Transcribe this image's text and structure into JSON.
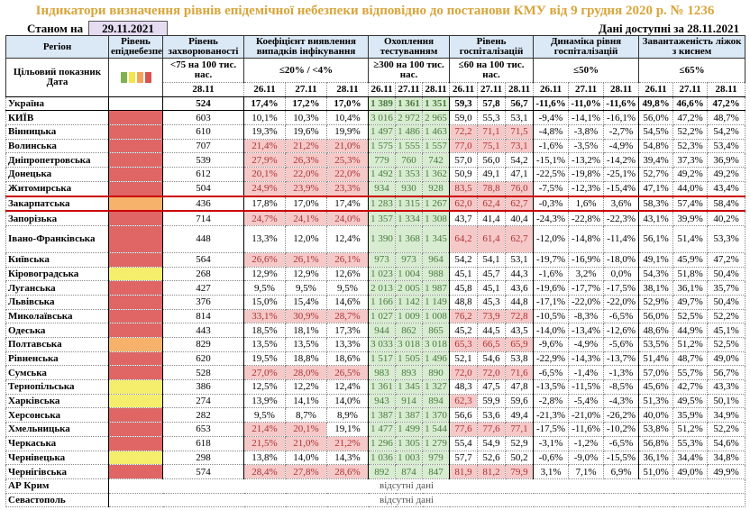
{
  "title": "Індикатори визначення рівнів епідемічної небезпеки відповідно до постанови КМУ від 9 грудня 2020 р. № 1236",
  "as_of_label": "Станом на",
  "as_of_date": "29.11.2021",
  "available_label": "Дані доступні за",
  "available_date": "28.11.2021",
  "headers": {
    "region": "Регіон",
    "level": "Рівень епіднебезпеки",
    "incidence": "Рівень захворюваності",
    "coef": "Коефіцієнт виявлення випадків інфікування",
    "testing": "Охоплення тестуванням",
    "hosp": "Рівень госпіталізацій",
    "dyn": "Динаміка рівня госпіталізацій",
    "beds": "Завантаженість ліжок з киснем"
  },
  "target_row": {
    "label": "Цільовий показник",
    "incidence": "<75 на 100 тис. нас.",
    "coef": "≤20% / <4%",
    "testing": "≥300 на 100 тис. нас.",
    "hosp": "≤60 на 100 тис. нас.",
    "dyn": "≤50%",
    "beds": "≤65%"
  },
  "legend_colors": [
    "#7fb24e",
    "#f2e64b",
    "#f3a35b",
    "#d9534f"
  ],
  "date_label": "Дата",
  "incidence_date": "28.11",
  "dates": [
    "26.11",
    "27.11",
    "28.11"
  ],
  "level_colors": {
    "red": "#e06666",
    "orange": "#f6b26b",
    "yellow": "#f5ed6c"
  },
  "rows": [
    {
      "region": "Україна",
      "level": "",
      "inc": "524",
      "coef": [
        "17,4%",
        "17,2%",
        "17,0%"
      ],
      "test": [
        "1 389",
        "1 361",
        "1 351"
      ],
      "hosp": [
        "59,3",
        "57,8",
        "56,7"
      ],
      "dyn": [
        "-11,6%",
        "-11,0%",
        "-11,6%"
      ],
      "beds": [
        "49,8%",
        "46,6%",
        "47,2%"
      ]
    },
    {
      "region": "КИЇВ",
      "level": "red",
      "inc": "603",
      "coef": [
        "10,1%",
        "10,3%",
        "10,4%"
      ],
      "test": [
        "3 016",
        "2 972",
        "2 965"
      ],
      "hosp": [
        "59,0",
        "55,3",
        "53,1"
      ],
      "dyn": [
        "-9,4%",
        "-14,1%",
        "-16,1%"
      ],
      "beds": [
        "56,0%",
        "47,2%",
        "48,7%"
      ]
    },
    {
      "region": "Вінницька",
      "level": "red",
      "inc": "610",
      "coef": [
        "19,3%",
        "19,6%",
        "19,9%"
      ],
      "test": [
        "1 497",
        "1 486",
        "1 463"
      ],
      "hosp": [
        "72,2",
        "71,1",
        "71,5"
      ],
      "dyn": [
        "-4,8%",
        "-3,8%",
        "-2,7%"
      ],
      "beds": [
        "54,5%",
        "52,2%",
        "54,2%"
      ]
    },
    {
      "region": "Волинська",
      "level": "red",
      "inc": "707",
      "coef": [
        "21,4%",
        "21,2%",
        "21,0%"
      ],
      "test": [
        "1 575",
        "1 555",
        "1 557"
      ],
      "hosp": [
        "77,0",
        "75,1",
        "73,1"
      ],
      "dyn": [
        "-1,6%",
        "-3,5%",
        "-4,9%"
      ],
      "beds": [
        "54,8%",
        "52,3%",
        "53,4%"
      ]
    },
    {
      "region": "Дніпропетровська",
      "level": "red",
      "inc": "539",
      "coef": [
        "27,9%",
        "26,3%",
        "25,3%"
      ],
      "test": [
        "779",
        "760",
        "742"
      ],
      "hosp": [
        "57,0",
        "56,0",
        "54,2"
      ],
      "dyn": [
        "-15,1%",
        "-13,2%",
        "-14,2%"
      ],
      "beds": [
        "39,4%",
        "37,3%",
        "36,9%"
      ]
    },
    {
      "region": "Донецька",
      "level": "red",
      "inc": "612",
      "coef": [
        "20,1%",
        "22,0%",
        "22,0%"
      ],
      "test": [
        "1 492",
        "1 353",
        "1 362"
      ],
      "hosp": [
        "50,9",
        "49,1",
        "47,1"
      ],
      "dyn": [
        "-22,5%",
        "-19,8%",
        "-25,1%"
      ],
      "beds": [
        "52,7%",
        "49,2%",
        "49,2%"
      ]
    },
    {
      "region": "Житомирська",
      "level": "red",
      "inc": "504",
      "coef": [
        "24,9%",
        "23,9%",
        "23,3%"
      ],
      "test": [
        "934",
        "930",
        "928"
      ],
      "hosp": [
        "83,5",
        "78,8",
        "76,0"
      ],
      "dyn": [
        "-7,5%",
        "-12,3%",
        "-15,4%"
      ],
      "beds": [
        "47,1%",
        "44,0%",
        "43,4%"
      ]
    },
    {
      "region": "Закарпатська",
      "level": "orange",
      "inc": "436",
      "coef": [
        "17,8%",
        "17,0%",
        "17,4%"
      ],
      "test": [
        "1 283",
        "1 315",
        "1 267"
      ],
      "hosp": [
        "62,0",
        "62,4",
        "62,7"
      ],
      "dyn": [
        "-0,3%",
        "1,6%",
        "3,6%"
      ],
      "beds": [
        "58,3%",
        "57,4%",
        "58,4%"
      ]
    },
    {
      "region": "Запорізька",
      "level": "red",
      "inc": "714",
      "coef": [
        "24,7%",
        "24,1%",
        "24,0%"
      ],
      "test": [
        "1 357",
        "1 334",
        "1 308"
      ],
      "hosp": [
        "43,7",
        "41,4",
        "40,4"
      ],
      "dyn": [
        "-24,3%",
        "-22,8%",
        "-22,3%"
      ],
      "beds": [
        "43,1%",
        "39,9%",
        "40,2%"
      ]
    },
    {
      "region": "Івано-Франківська",
      "level": "red",
      "inc": "448",
      "coef": [
        "13,3%",
        "12,0%",
        "12,4%"
      ],
      "test": [
        "1 390",
        "1 368",
        "1 345"
      ],
      "hosp": [
        "64,2",
        "61,4",
        "62,7"
      ],
      "dyn": [
        "-12,0%",
        "-14,8%",
        "-11,4%"
      ],
      "beds": [
        "56,1%",
        "51,4%",
        "53,3%"
      ]
    },
    {
      "region": "Київська",
      "level": "red",
      "inc": "564",
      "coef": [
        "26,6%",
        "26,1%",
        "26,1%"
      ],
      "test": [
        "973",
        "973",
        "964"
      ],
      "hosp": [
        "54,2",
        "54,1",
        "53,1"
      ],
      "dyn": [
        "-19,7%",
        "-16,9%",
        "-18,0%"
      ],
      "beds": [
        "49,1%",
        "45,9%",
        "47,2%"
      ]
    },
    {
      "region": "Кіровоградська",
      "level": "yellow",
      "inc": "268",
      "coef": [
        "12,9%",
        "12,9%",
        "12,6%"
      ],
      "test": [
        "1 023",
        "1 004",
        "988"
      ],
      "hosp": [
        "45,1",
        "45,7",
        "44,3"
      ],
      "dyn": [
        "-1,6%",
        "3,2%",
        "0,0%"
      ],
      "beds": [
        "54,3%",
        "51,8%",
        "50,4%"
      ]
    },
    {
      "region": "Луганська",
      "level": "red",
      "inc": "427",
      "coef": [
        "9,5%",
        "9,5%",
        "9,5%"
      ],
      "test": [
        "2 013",
        "2 005",
        "1 987"
      ],
      "hosp": [
        "45,8",
        "45,1",
        "43,6"
      ],
      "dyn": [
        "-19,6%",
        "-17,7%",
        "-17,5%"
      ],
      "beds": [
        "38,1%",
        "36,1%",
        "35,7%"
      ]
    },
    {
      "region": "Львівська",
      "level": "red",
      "inc": "376",
      "coef": [
        "15,0%",
        "15,4%",
        "14,6%"
      ],
      "test": [
        "1 166",
        "1 142",
        "1 149"
      ],
      "hosp": [
        "48,8",
        "45,3",
        "44,8"
      ],
      "dyn": [
        "-17,1%",
        "-22,0%",
        "-22,0%"
      ],
      "beds": [
        "52,9%",
        "49,7%",
        "50,4%"
      ]
    },
    {
      "region": "Миколаївська",
      "level": "red",
      "inc": "814",
      "coef": [
        "33,1%",
        "30,9%",
        "28,7%"
      ],
      "test": [
        "1 027",
        "1 009",
        "1 008"
      ],
      "hosp": [
        "76,2",
        "73,9",
        "72,8"
      ],
      "dyn": [
        "-10,5%",
        "-8,3%",
        "-6,5%"
      ],
      "beds": [
        "56,0%",
        "52,5%",
        "52,2%"
      ]
    },
    {
      "region": "Одеська",
      "level": "red",
      "inc": "443",
      "coef": [
        "18,5%",
        "18,1%",
        "17,3%"
      ],
      "test": [
        "944",
        "862",
        "865"
      ],
      "hosp": [
        "45,2",
        "44,5",
        "43,5"
      ],
      "dyn": [
        "-14,0%",
        "-13,4%",
        "-12,6%"
      ],
      "beds": [
        "48,6%",
        "44,9%",
        "45,1%"
      ]
    },
    {
      "region": "Полтавська",
      "level": "orange",
      "inc": "829",
      "coef": [
        "13,5%",
        "13,5%",
        "13,3%"
      ],
      "test": [
        "3 033",
        "3 018",
        "3 018"
      ],
      "hosp": [
        "65,3",
        "66,5",
        "65,9"
      ],
      "dyn": [
        "-9,6%",
        "-4,9%",
        "-5,6%"
      ],
      "beds": [
        "53,5%",
        "51,2%",
        "52,5%"
      ]
    },
    {
      "region": "Рівненська",
      "level": "red",
      "inc": "620",
      "coef": [
        "19,5%",
        "18,8%",
        "18,6%"
      ],
      "test": [
        "1 517",
        "1 505",
        "1 496"
      ],
      "hosp": [
        "52,1",
        "54,6",
        "53,8"
      ],
      "dyn": [
        "-22,9%",
        "-14,3%",
        "-13,7%"
      ],
      "beds": [
        "51,4%",
        "48,7%",
        "49,0%"
      ]
    },
    {
      "region": "Сумська",
      "level": "red",
      "inc": "528",
      "coef": [
        "27,0%",
        "28,0%",
        "26,5%"
      ],
      "test": [
        "983",
        "893",
        "890"
      ],
      "hosp": [
        "72,0",
        "72,0",
        "71,6"
      ],
      "dyn": [
        "-6,5%",
        "-1,4%",
        "-1,3%"
      ],
      "beds": [
        "57,0%",
        "55,7%",
        "56,7%"
      ]
    },
    {
      "region": "Тернопільська",
      "level": "yellow",
      "inc": "386",
      "coef": [
        "12,5%",
        "12,2%",
        "12,4%"
      ],
      "test": [
        "1 361",
        "1 345",
        "1 327"
      ],
      "hosp": [
        "48,3",
        "47,5",
        "47,8"
      ],
      "dyn": [
        "-13,5%",
        "-11,5%",
        "-8,5%"
      ],
      "beds": [
        "45,6%",
        "42,7%",
        "43,3%"
      ]
    },
    {
      "region": "Харківська",
      "level": "yellow",
      "inc": "274",
      "coef": [
        "13,9%",
        "14,1%",
        "14,0%"
      ],
      "test": [
        "943",
        "914",
        "894"
      ],
      "hosp": [
        "62,3",
        "59,9",
        "59,6"
      ],
      "dyn": [
        "-2,8%",
        "-5,4%",
        "-4,3%"
      ],
      "beds": [
        "51,3%",
        "49,5%",
        "50,1%"
      ]
    },
    {
      "region": "Херсонська",
      "level": "red",
      "inc": "282",
      "coef": [
        "9,5%",
        "8,7%",
        "8,9%"
      ],
      "test": [
        "1 387",
        "1 387",
        "1 370"
      ],
      "hosp": [
        "56,6",
        "53,6",
        "49,4"
      ],
      "dyn": [
        "-21,3%",
        "-21,0%",
        "-26,2%"
      ],
      "beds": [
        "40,0%",
        "35,9%",
        "34,9%"
      ]
    },
    {
      "region": "Хмельницька",
      "level": "red",
      "inc": "653",
      "coef": [
        "21,4%",
        "20,1%",
        "19,1%"
      ],
      "test": [
        "1 477",
        "1 499",
        "1 544"
      ],
      "hosp": [
        "77,6",
        "77,6",
        "77,1"
      ],
      "dyn": [
        "-17,5%",
        "-11,6%",
        "-10,2%"
      ],
      "beds": [
        "53,8%",
        "51,2%",
        "52,2%"
      ]
    },
    {
      "region": "Черкаська",
      "level": "red",
      "inc": "618",
      "coef": [
        "21,5%",
        "21,0%",
        "21,2%"
      ],
      "test": [
        "1 296",
        "1 305",
        "1 279"
      ],
      "hosp": [
        "55,4",
        "54,9",
        "52,9"
      ],
      "dyn": [
        "-3,1%",
        "-1,2%",
        "-6,5%"
      ],
      "beds": [
        "56,8%",
        "55,3%",
        "54,6%"
      ]
    },
    {
      "region": "Чернівецька",
      "level": "yellow",
      "inc": "298",
      "coef": [
        "13,8%",
        "14,0%",
        "14,3%"
      ],
      "test": [
        "1 036",
        "1 003",
        "979"
      ],
      "hosp": [
        "57,7",
        "52,6",
        "50,2"
      ],
      "dyn": [
        "-0,6%",
        "-9,0%",
        "-15,5%"
      ],
      "beds": [
        "36,1%",
        "34,4%",
        "34,8%"
      ]
    },
    {
      "region": "Чернігівська",
      "level": "red",
      "inc": "574",
      "coef": [
        "28,4%",
        "27,8%",
        "28,6%"
      ],
      "test": [
        "892",
        "874",
        "847"
      ],
      "hosp": [
        "81,9",
        "81,2",
        "79,9"
      ],
      "dyn": [
        "3,1%",
        "7,1%",
        "6,9%"
      ],
      "beds": [
        "51,0%",
        "49,0%",
        "49,9%"
      ]
    }
  ],
  "missing": [
    {
      "region": "АР Крим",
      "note": "відсутні дані"
    },
    {
      "region": "Севастополь",
      "note": "відсутні дані"
    }
  ]
}
